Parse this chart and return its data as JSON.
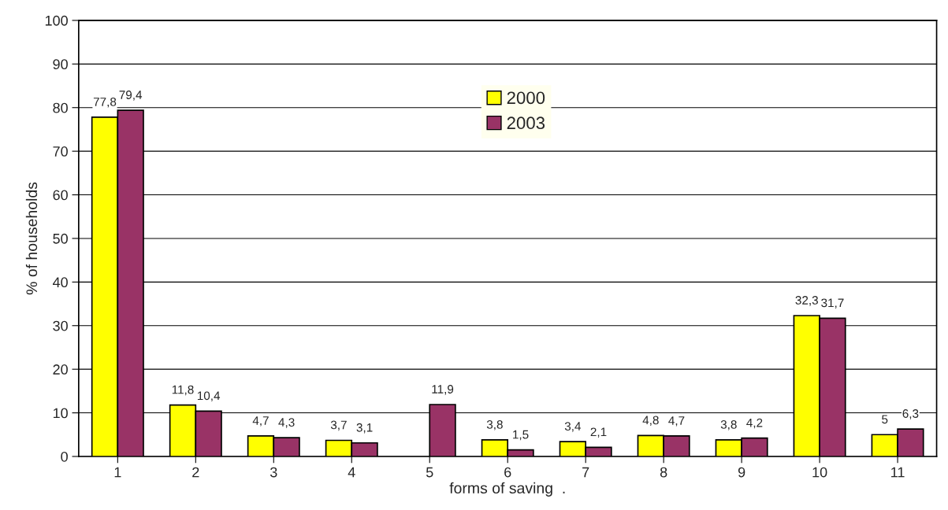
{
  "chart_data": {
    "type": "bar",
    "xlabel": "forms of saving  .",
    "ylabel": "% of households",
    "categories": [
      "1",
      "2",
      "3",
      "4",
      "5",
      "6",
      "7",
      "8",
      "9",
      "10",
      "11"
    ],
    "series": [
      {
        "name": "2000",
        "color": "#ffff00",
        "values": [
          77.8,
          11.8,
          4.7,
          3.7,
          null,
          3.8,
          3.4,
          4.8,
          3.8,
          32.3,
          5
        ],
        "value_labels": [
          "77,8",
          "11,8",
          "4,7",
          "3,7",
          null,
          "3,8",
          "3,4",
          "4,8",
          "3,8",
          "32,3",
          "5"
        ]
      },
      {
        "name": "2003",
        "color": "#993366",
        "values": [
          79.4,
          10.4,
          4.3,
          3.1,
          11.9,
          1.5,
          2.1,
          4.7,
          4.2,
          31.7,
          6.3
        ],
        "value_labels": [
          "79,4",
          "10,4",
          "4,3",
          "3,1",
          "11,9",
          "1,5",
          "2,1",
          "4,7",
          "4,2",
          "31,7",
          "6,3"
        ]
      }
    ],
    "ylim": [
      0,
      100
    ],
    "yticks": [
      0,
      10,
      20,
      30,
      40,
      50,
      60,
      70,
      80,
      90,
      100
    ],
    "grid": "y",
    "legend": "top"
  }
}
